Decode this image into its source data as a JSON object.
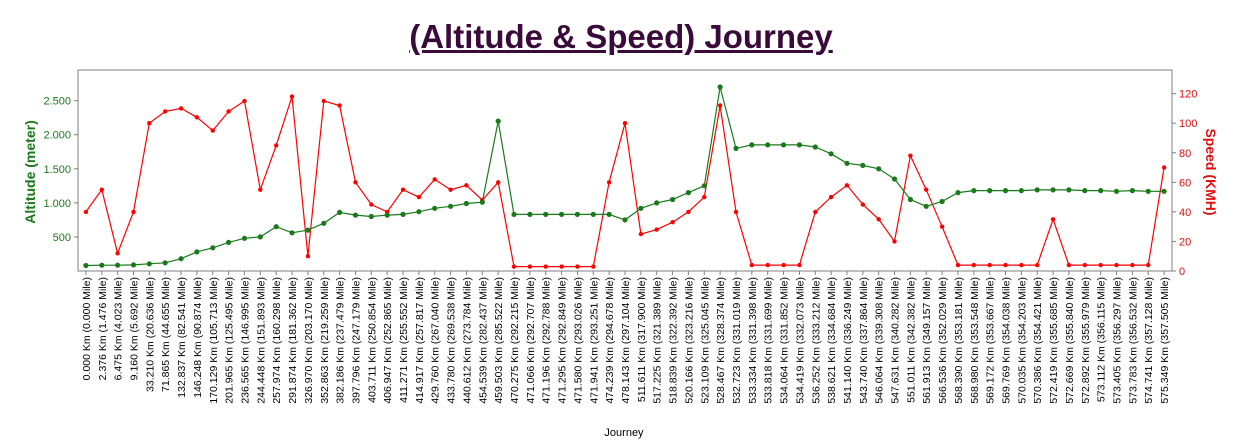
{
  "chart_data": {
    "type": "line",
    "title": "(Altitude & Speed) Journey",
    "xlabel": "Journey",
    "y_left_label": "Altitude (meter)",
    "y_right_label": "Speed (KMH)",
    "y_left_ticks": [
      "500",
      "1.000",
      "1.500",
      "2.000",
      "2.500"
    ],
    "y_left_tick_values": [
      500,
      1000,
      1500,
      2000,
      2500
    ],
    "y_left_range": [
      0,
      2950
    ],
    "y_right_ticks": [
      "0",
      "20",
      "40",
      "60",
      "80",
      "100",
      "120"
    ],
    "y_right_tick_values": [
      0,
      20,
      40,
      60,
      80,
      100,
      120
    ],
    "y_right_range": [
      0,
      136
    ],
    "x_tick_labels": [
      "0.000 Km (0.000 Mile)",
      "2.376 Km (1.476 Mile)",
      "6.475 Km (4.023 Mile)",
      "9.160 Km (5.692 Mile)",
      "33.210 Km (20.636 Mile)",
      "71.865 Km (44.655 Mile)",
      "132.837 Km (82.541 Mile)",
      "146.248 Km (90.874 Mile)",
      "170.129 Km (105.713 Mile)",
      "201.965 Km (125.495 Mile)",
      "236.565 Km (146.995 Mile)",
      "244.448 Km (151.893 Mile)",
      "257.974 Km (160.298 Mile)",
      "291.874 Km (181.362 Mile)",
      "326.970 Km (203.170 Mile)",
      "352.863 Km (219.259 Mile)",
      "382.186 Km (237.479 Mile)",
      "397.796 Km (247.179 Mile)",
      "403.711 Km (250.854 Mile)",
      "406.947 Km (252.865 Mile)",
      "411.271 Km (255.552 Mile)",
      "414.917 Km (257.817 Mile)",
      "429.760 Km (267.040 Mile)",
      "433.780 Km (269.538 Mile)",
      "440.612 Km (273.784 Mile)",
      "454.539 Km (282.437 Mile)",
      "459.503 Km (285.522 Mile)",
      "470.275 Km (292.215 Mile)",
      "471.066 Km (292.707 Mile)",
      "471.196 Km (292.788 Mile)",
      "471.295 Km (292.849 Mile)",
      "471.580 Km (293.026 Mile)",
      "471.941 Km (293.251 Mile)",
      "474.239 Km (294.678 Mile)",
      "478.143 Km (297.104 Mile)",
      "511.611 Km (317.900 Mile)",
      "517.225 Km (321.389 Mile)",
      "518.839 Km (322.392 Mile)",
      "520.166 Km (323.216 Mile)",
      "523.109 Km (325.045 Mile)",
      "528.467 Km (328.374 Mile)",
      "532.723 Km (331.019 Mile)",
      "533.334 Km (331.398 Mile)",
      "533.818 Km (331.699 Mile)",
      "534.064 Km (331.852 Mile)",
      "534.419 Km (332.073 Mile)",
      "536.252 Km (333.212 Mile)",
      "538.621 Km (334.684 Mile)",
      "541.140 Km (336.249 Mile)",
      "543.740 Km (337.864 Mile)",
      "546.064 Km (339.308 Mile)",
      "547.631 Km (340.282 Mile)",
      "551.011 Km (342.382 Mile)",
      "561.913 Km (349.157 Mile)",
      "566.536 Km (352.029 Mile)",
      "568.390 Km (353.181 Mile)",
      "568.980 Km (353.548 Mile)",
      "569.172 Km (353.667 Mile)",
      "569.769 Km (354.038 Mile)",
      "570.035 Km (354.203 Mile)",
      "570.386 Km (354.421 Mile)",
      "572.419 Km (355.685 Mile)",
      "572.669 Km (355.840 Mile)",
      "572.892 Km (355.979 Mile)",
      "573.112 Km (356.115 Mile)",
      "573.405 Km (356.297 Mile)",
      "573.783 Km (356.532 Mile)",
      "574.741 Km (357.128 Mile)",
      "575.349 Km (357.505 Mile)"
    ],
    "series": [
      {
        "name": "Altitude (meter)",
        "axis": "left",
        "color": "#1a7a1a",
        "values": [
          80,
          85,
          85,
          90,
          105,
          120,
          180,
          280,
          340,
          420,
          480,
          500,
          650,
          560,
          600,
          700,
          860,
          820,
          800,
          820,
          830,
          870,
          920,
          950,
          990,
          1010,
          2200,
          830,
          830,
          830,
          830,
          830,
          830,
          830,
          750,
          920,
          1000,
          1050,
          1150,
          1250,
          2700,
          1800,
          1850,
          1850,
          1850,
          1850,
          1820,
          1720,
          1580,
          1550,
          1500,
          1350,
          1050,
          950,
          1020,
          1150,
          1180,
          1180,
          1180,
          1180,
          1190,
          1190,
          1190,
          1180,
          1180,
          1170,
          1180,
          1170,
          1170
        ]
      },
      {
        "name": "Speed (KMH)",
        "axis": "right",
        "color": "#ff0000",
        "values": [
          40,
          55,
          12,
          40,
          100,
          108,
          110,
          104,
          95,
          108,
          115,
          55,
          85,
          118,
          10,
          115,
          112,
          60,
          45,
          40,
          55,
          50,
          62,
          55,
          58,
          48,
          60,
          3,
          3,
          3,
          3,
          3,
          3,
          60,
          100,
          25,
          28,
          33,
          40,
          50,
          112,
          40,
          4,
          4,
          4,
          4,
          40,
          50,
          58,
          45,
          35,
          20,
          78,
          55,
          30,
          4,
          4,
          4,
          4,
          4,
          4,
          35,
          4,
          4,
          4,
          4,
          4,
          4,
          70
        ]
      }
    ],
    "grid": false,
    "legend": "none"
  }
}
